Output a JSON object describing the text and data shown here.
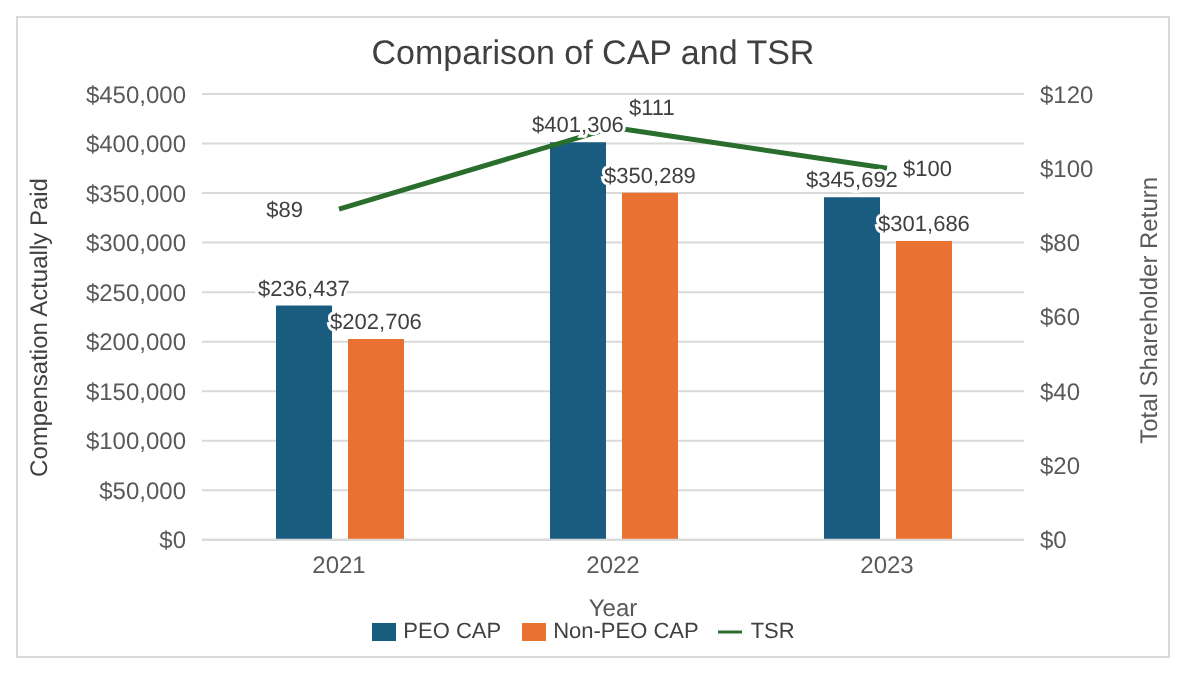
{
  "chart_data": {
    "type": "bar",
    "title": "Comparison of CAP and TSR",
    "xlabel": "Year",
    "ylabel": "Compensation  Actually Paid",
    "y2label": "Total Shareholder  Return",
    "categories": [
      "2021",
      "2022",
      "2023"
    ],
    "series": [
      {
        "name": "PEO CAP",
        "color": "#1a5c7f",
        "values": [
          236437,
          401306,
          345692
        ],
        "value_labels": [
          "$236,437",
          "$401,306",
          "$345,692"
        ]
      },
      {
        "name": "Non-PEO CAP",
        "color": "#e97132",
        "values": [
          202706,
          350289,
          301686
        ],
        "value_labels": [
          "$202,706",
          "$350,289",
          "$301,686"
        ]
      },
      {
        "name": "TSR",
        "type": "line",
        "axis": "y2",
        "color": "#2a6e2e",
        "values": [
          89,
          111,
          100
        ],
        "value_labels": [
          "$89",
          "$111",
          "$100"
        ]
      }
    ],
    "ylim": [
      0,
      450000
    ],
    "yticks": [
      {
        "value": 0,
        "label": "$0"
      },
      {
        "value": 50000,
        "label": "$50,000"
      },
      {
        "value": 100000,
        "label": "$100,000"
      },
      {
        "value": 150000,
        "label": "$150,000"
      },
      {
        "value": 200000,
        "label": "$200,000"
      },
      {
        "value": 250000,
        "label": "$250,000"
      },
      {
        "value": 300000,
        "label": "$300,000"
      },
      {
        "value": 350000,
        "label": "$350,000"
      },
      {
        "value": 400000,
        "label": "$400,000"
      },
      {
        "value": 450000,
        "label": "$450,000"
      }
    ],
    "y2lim": [
      0,
      120
    ],
    "y2ticks": [
      {
        "value": 0,
        "label": "$0"
      },
      {
        "value": 20,
        "label": "$20"
      },
      {
        "value": 40,
        "label": "$40"
      },
      {
        "value": 60,
        "label": "$60"
      },
      {
        "value": 80,
        "label": "$80"
      },
      {
        "value": 100,
        "label": "$100"
      },
      {
        "value": 120,
        "label": "$120"
      }
    ],
    "grid": "y",
    "legend": "bottom",
    "marker": "none"
  }
}
